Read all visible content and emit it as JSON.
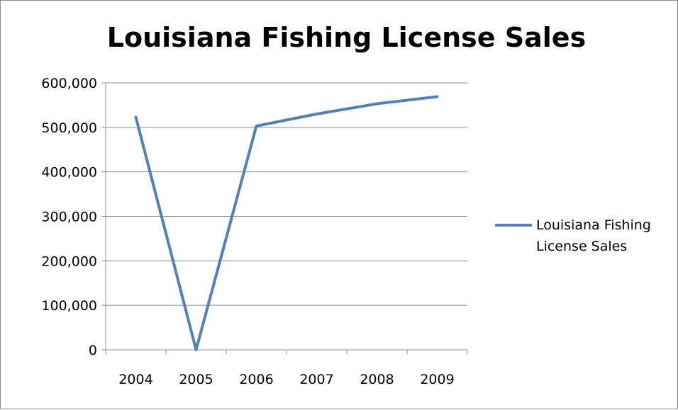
{
  "chart_data": {
    "type": "line",
    "title": "Louisiana Fishing License Sales",
    "xlabel": "",
    "ylabel": "",
    "categories": [
      "2004",
      "2005",
      "2006",
      "2007",
      "2008",
      "2009"
    ],
    "series": [
      {
        "name": "Louisiana Fishing License Sales",
        "values": [
          523000,
          0,
          503000,
          530000,
          553000,
          569000
        ],
        "color": "#4f81bd"
      }
    ],
    "ylim": [
      0,
      600000
    ],
    "yticks": [
      0,
      100000,
      200000,
      300000,
      400000,
      500000,
      600000
    ],
    "ytick_labels": [
      "0",
      "100,000",
      "200,000",
      "300,000",
      "400,000",
      "500,000",
      "600,000"
    ],
    "grid": "horizontal",
    "legend": "right"
  }
}
